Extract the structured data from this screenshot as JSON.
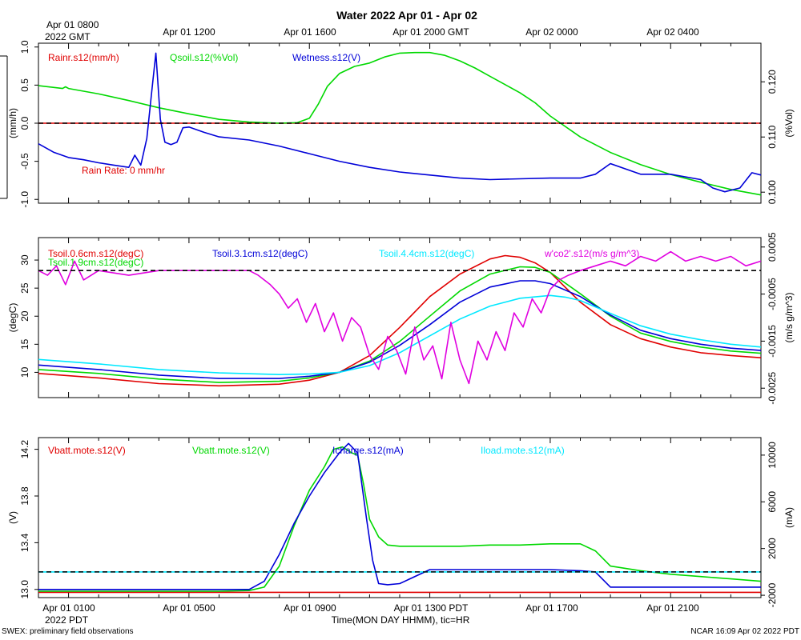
{
  "title": "Water 2022 Apr 01 - Apr 02",
  "footer_left": "SWEX: preliminary field observations",
  "footer_right": "NCAR 16:09 Apr 02 2022 PDT",
  "xaxis_label": "Time(MON DAY HHMM), tic=HR",
  "top_time_labels": [
    "Apr 01 0800",
    "Apr 01 1200",
    "Apr 01 1600",
    "Apr 01 2000 GMT",
    "Apr 02 0000",
    "Apr 02 0400"
  ],
  "top_time_sublabel": "2022 GMT",
  "bottom_time_labels": [
    "Apr 01 0100",
    "Apr 01 0500",
    "Apr 01 0900",
    "Apr 01 1300 PDT",
    "Apr 01 1700",
    "Apr 01 2100"
  ],
  "bottom_time_sublabel": "2022 PDT",
  "colors": {
    "red": "#e00000",
    "green": "#00d800",
    "blue": "#0000d8",
    "cyan": "#00e8ff",
    "magenta": "#e000e0",
    "black": "#000000"
  },
  "chart_data": [
    {
      "type": "line",
      "panel": "water",
      "x_unit": "hours since Apr 01 0000 PDT",
      "xlim": [
        0,
        24
      ],
      "grid": false,
      "left_axis": {
        "label": "(mm/h)",
        "lim": [
          -1.05,
          1.05
        ],
        "ticks": [
          "-1.0",
          "-0.5",
          "0.0",
          "0.5",
          "1.0"
        ]
      },
      "right_axis": {
        "label": "(%Vol)",
        "lim": [
          0.098,
          0.127
        ],
        "ticks": [
          "0.100",
          "0.110",
          "0.120"
        ]
      },
      "reference_line": {
        "axis": "left",
        "value": 0.0
      },
      "annotation": "Rain Rate: 0 mm/hr",
      "series": [
        {
          "name": "Rainr.s12(mm/h)",
          "color": "red",
          "axis": "left",
          "x": [
            0,
            24
          ],
          "y": [
            0,
            0
          ]
        },
        {
          "name": "Qsoil.s12(%Vol)",
          "color": "green",
          "axis": "right",
          "x": [
            0,
            0.8,
            0.9,
            1.0,
            2,
            3,
            4,
            5,
            6,
            7,
            8,
            8.6,
            9,
            9.3,
            9.6,
            10,
            10.5,
            11,
            11.5,
            12,
            12.5,
            13,
            13.5,
            14,
            14.5,
            15,
            15.5,
            16,
            16.5,
            17,
            18,
            19,
            20,
            21,
            22,
            23,
            24
          ],
          "y": [
            0.1193,
            0.1188,
            0.1191,
            0.1188,
            0.1178,
            0.1166,
            0.1153,
            0.1142,
            0.1132,
            0.1127,
            0.1125,
            0.1126,
            0.1134,
            0.116,
            0.1192,
            0.1215,
            0.1228,
            0.1234,
            0.1245,
            0.1252,
            0.1253,
            0.1253,
            0.1248,
            0.1238,
            0.1225,
            0.121,
            0.1195,
            0.118,
            0.1162,
            0.1138,
            0.11,
            0.1072,
            0.105,
            0.1032,
            0.1018,
            0.1005,
            0.0995
          ]
        },
        {
          "name": "Wetness.s12(V)",
          "color": "blue",
          "axis": "left",
          "x": [
            0,
            0.5,
            1,
            1.5,
            2,
            2.5,
            3,
            3.2,
            3.4,
            3.6,
            3.8,
            3.9,
            4.05,
            4.2,
            4.4,
            4.6,
            4.8,
            5,
            5.5,
            6,
            7,
            8,
            9,
            10,
            11,
            12,
            13,
            14,
            15,
            16,
            17,
            18,
            18.5,
            19,
            20,
            21,
            22,
            22.4,
            22.8,
            23.3,
            23.7,
            24
          ],
          "y": [
            -0.27,
            -0.38,
            -0.45,
            -0.48,
            -0.52,
            -0.55,
            -0.58,
            -0.42,
            -0.55,
            -0.2,
            0.55,
            0.92,
            0.05,
            -0.25,
            -0.28,
            -0.25,
            -0.06,
            -0.05,
            -0.12,
            -0.18,
            -0.22,
            -0.3,
            -0.4,
            -0.5,
            -0.58,
            -0.64,
            -0.68,
            -0.72,
            -0.74,
            -0.73,
            -0.72,
            -0.72,
            -0.67,
            -0.53,
            -0.67,
            -0.67,
            -0.74,
            -0.85,
            -0.9,
            -0.85,
            -0.65,
            -0.68
          ]
        }
      ]
    },
    {
      "type": "line",
      "panel": "temperature",
      "x_unit": "hours since Apr 01 0000 PDT",
      "xlim": [
        0,
        24
      ],
      "grid": false,
      "left_axis": {
        "label": "(degC)",
        "lim": [
          5.5,
          34
        ],
        "ticks": [
          "10",
          "15",
          "20",
          "25",
          "30"
        ]
      },
      "right_axis": {
        "label": "(m/s g/m^3)",
        "lim": [
          -0.0027,
          0.0007
        ],
        "ticks": [
          "-0.0025",
          "-0.0015",
          "-0.0005",
          "0.0005"
        ]
      },
      "reference_line": {
        "axis": "right",
        "value": 0.0
      },
      "series": [
        {
          "name": "Tsoil.0.6cm.s12(degC)",
          "color": "red",
          "axis": "left",
          "x": [
            0,
            2,
            4,
            6,
            8,
            9,
            10,
            11,
            12,
            13,
            14,
            15,
            15.5,
            16,
            16.5,
            17,
            18,
            19,
            20,
            21,
            22,
            23,
            24
          ],
          "y": [
            9.8,
            9.0,
            8.0,
            7.6,
            7.9,
            8.6,
            10.0,
            13.0,
            18.0,
            23.5,
            27.5,
            30.2,
            30.8,
            30.5,
            29.5,
            27.8,
            22.5,
            18.5,
            16.0,
            14.5,
            13.5,
            13.0,
            12.6
          ]
        },
        {
          "name": "Tsoil.1.9cm.s12(degC)",
          "color": "green",
          "axis": "left",
          "x": [
            0,
            2,
            4,
            6,
            8,
            9,
            10,
            11,
            12,
            13,
            14,
            15,
            16,
            16.5,
            17,
            18,
            19,
            20,
            21,
            22,
            23,
            24
          ],
          "y": [
            10.5,
            9.8,
            8.8,
            8.2,
            8.4,
            9.0,
            10.0,
            12.0,
            15.5,
            20.0,
            24.5,
            27.5,
            28.8,
            28.7,
            27.8,
            24.0,
            20.0,
            17.0,
            15.5,
            14.5,
            13.8,
            13.4
          ]
        },
        {
          "name": "Tsoil.3.1cm.s12(degC)",
          "color": "blue",
          "axis": "left",
          "x": [
            0,
            2,
            4,
            6,
            8,
            9,
            10,
            11,
            12,
            13,
            14,
            15,
            16,
            16.5,
            17,
            18,
            19,
            20,
            21,
            22,
            23,
            24
          ],
          "y": [
            11.3,
            10.5,
            9.5,
            8.9,
            8.9,
            9.3,
            10.0,
            11.8,
            14.8,
            18.5,
            22.5,
            25.2,
            26.3,
            26.3,
            25.8,
            23.5,
            20.2,
            17.5,
            16.0,
            15.0,
            14.3,
            13.9
          ]
        },
        {
          "name": "Tsoil.4.4cm.s12(degC)",
          "color": "cyan",
          "axis": "left",
          "x": [
            0,
            2,
            4,
            6,
            8,
            9,
            10,
            11,
            12,
            13,
            14,
            15,
            16,
            17,
            17.5,
            18,
            19,
            20,
            21,
            22,
            23,
            24
          ],
          "y": [
            12.3,
            11.5,
            10.5,
            9.9,
            9.6,
            9.7,
            10.0,
            11.2,
            13.5,
            16.5,
            19.5,
            21.8,
            23.2,
            23.7,
            23.4,
            22.8,
            20.5,
            18.3,
            16.8,
            15.8,
            15.0,
            14.5
          ]
        },
        {
          "name": "w'co2'.s12(m/s g/m^3)",
          "color": "magenta",
          "axis": "right",
          "x": [
            0,
            0.3,
            0.6,
            0.9,
            1.2,
            1.5,
            2,
            3,
            4,
            5,
            6,
            6.5,
            7,
            7.3,
            7.7,
            8,
            8.3,
            8.6,
            8.9,
            9.2,
            9.5,
            9.8,
            10.1,
            10.4,
            10.7,
            11,
            11.3,
            11.6,
            11.9,
            12.2,
            12.5,
            12.8,
            13.1,
            13.4,
            13.7,
            14,
            14.3,
            14.6,
            14.9,
            15.2,
            15.5,
            15.8,
            16.1,
            16.4,
            16.7,
            17,
            17.3,
            17.6,
            18,
            18.5,
            19,
            19.5,
            20,
            20.5,
            21,
            21.5,
            22,
            22.5,
            23,
            23.5,
            24
          ],
          "y": [
            0.0,
            -0.0001,
            0.0001,
            -0.0003,
            0.0002,
            -0.0002,
            0.0,
            -0.0001,
            0.0,
            0.0,
            0.0,
            0.0,
            0.0,
            -0.0001,
            -0.0003,
            -0.0005,
            -0.0008,
            -0.0006,
            -0.0011,
            -0.0007,
            -0.0013,
            -0.0009,
            -0.0015,
            -0.001,
            -0.0012,
            -0.0018,
            -0.0021,
            -0.0014,
            -0.0017,
            -0.0022,
            -0.0012,
            -0.0019,
            -0.0016,
            -0.0023,
            -0.0011,
            -0.0019,
            -0.0024,
            -0.0015,
            -0.0019,
            -0.0013,
            -0.0017,
            -0.0009,
            -0.0012,
            -0.0006,
            -0.0009,
            -0.0004,
            -0.0002,
            -0.0001,
            0.0,
            0.0001,
            0.0002,
            0.0001,
            0.0003,
            0.0002,
            0.0004,
            0.0002,
            0.0003,
            0.0002,
            0.0003,
            0.0001,
            0.0002
          ]
        }
      ]
    },
    {
      "type": "line",
      "panel": "power",
      "x_unit": "hours since Apr 01 0000 PDT",
      "xlim": [
        0,
        24
      ],
      "grid": false,
      "left_axis": {
        "label": "(V)",
        "lim": [
          12.93,
          14.3
        ],
        "ticks": [
          "13.0",
          "13.4",
          "13.8",
          "14.2"
        ]
      },
      "right_axis": {
        "label": "(mA)",
        "lim": [
          -2200,
          11500
        ],
        "ticks": [
          "-2000",
          "2000",
          "6000",
          "10000"
        ]
      },
      "reference_line": {
        "axis": "right",
        "value": 0
      },
      "series": [
        {
          "name": "Vbatt.mote.s12(V)",
          "color": "red",
          "axis": "left",
          "x": [
            0,
            24
          ],
          "y": [
            12.975,
            12.975
          ]
        },
        {
          "name": "Vbatt.mote.s12(V)",
          "color": "green",
          "axis": "left",
          "x": [
            0,
            1,
            2,
            3,
            4,
            5,
            6,
            7,
            7.5,
            8,
            8.5,
            9,
            9.5,
            9.8,
            10.1,
            10.4,
            10.6,
            10.8,
            11,
            11.3,
            11.6,
            12,
            13,
            14,
            15,
            16,
            17,
            18,
            18.5,
            19,
            20,
            21,
            22,
            23,
            24
          ],
          "y": [
            12.985,
            12.985,
            12.985,
            12.985,
            12.985,
            12.985,
            12.985,
            12.99,
            13.02,
            13.2,
            13.55,
            13.85,
            14.05,
            14.2,
            14.22,
            14.17,
            14.15,
            13.9,
            13.6,
            13.45,
            13.38,
            13.37,
            13.37,
            13.37,
            13.38,
            13.38,
            13.39,
            13.39,
            13.33,
            13.2,
            13.16,
            13.13,
            13.11,
            13.09,
            13.07
          ]
        },
        {
          "name": "Icharge.s12(mA)",
          "color": "blue",
          "axis": "right",
          "x": [
            0,
            2,
            4,
            6,
            7,
            7.5,
            8,
            8.5,
            9,
            9.5,
            10,
            10.3,
            10.6,
            10.9,
            11.1,
            11.3,
            11.6,
            12,
            13,
            14,
            15,
            16,
            17,
            18,
            18.5,
            19,
            20,
            21,
            22,
            23,
            24
          ],
          "y": [
            -1500,
            -1500,
            -1500,
            -1500,
            -1500,
            -800,
            1500,
            4200,
            6500,
            8500,
            10200,
            11000,
            10200,
            4500,
            1000,
            -1000,
            -1100,
            -1000,
            200,
            200,
            200,
            200,
            200,
            100,
            0,
            -1300,
            -1300,
            -1300,
            -1300,
            -1300,
            -1300
          ]
        },
        {
          "name": "Iload.mote.s12(mA)",
          "color": "cyan",
          "axis": "right",
          "x": [
            0,
            24
          ],
          "y": [
            0,
            0
          ]
        }
      ]
    }
  ]
}
